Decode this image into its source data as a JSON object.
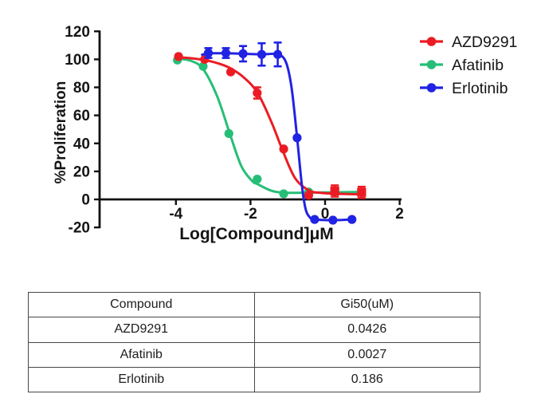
{
  "chart_data": {
    "type": "scatter-line",
    "title": "",
    "xlabel": "Log[Compound]μM",
    "ylabel": "%Proliferation",
    "xticks": [
      -4,
      -2,
      0,
      2
    ],
    "yticks": [
      120,
      100,
      80,
      60,
      40,
      20,
      0,
      -20
    ],
    "xlim": [
      -6.05,
      2.05
    ],
    "ylim": [
      -20,
      120
    ],
    "grid": false,
    "legend_position": "top-right",
    "axis_color": "#111111",
    "series": [
      {
        "name": "AZD9291",
        "color": "#EC1B23",
        "marker": "circle",
        "points": [
          {
            "x": -3.93,
            "y": 102
          },
          {
            "x": -3.23,
            "y": 100
          },
          {
            "x": -2.53,
            "y": 91
          },
          {
            "x": -1.82,
            "y": 76,
            "err": 4
          },
          {
            "x": -1.11,
            "y": 36
          },
          {
            "x": -0.44,
            "y": 3
          },
          {
            "x": 0.26,
            "y": 6,
            "err": 4,
            "shape": "square"
          },
          {
            "x": 0.98,
            "y": 5,
            "err": 4,
            "shape": "square"
          }
        ],
        "curve": [
          [
            -3.98,
            101.5
          ],
          [
            -3.6,
            100.8
          ],
          [
            -3.23,
            99.5
          ],
          [
            -2.85,
            97
          ],
          [
            -2.53,
            93.5
          ],
          [
            -2.2,
            87.5
          ],
          [
            -1.82,
            76.5
          ],
          [
            -1.45,
            56
          ],
          [
            -1.11,
            33
          ],
          [
            -0.8,
            15
          ],
          [
            -0.44,
            6.5
          ],
          [
            -0.1,
            4.6
          ],
          [
            0.4,
            4
          ],
          [
            1.05,
            3.6
          ]
        ]
      },
      {
        "name": "Afatinib",
        "color": "#26BE77",
        "marker": "circle",
        "points": [
          {
            "x": -3.96,
            "y": 99.5
          },
          {
            "x": -3.27,
            "y": 95
          },
          {
            "x": -2.58,
            "y": 47
          },
          {
            "x": -1.82,
            "y": 14.5
          },
          {
            "x": -1.11,
            "y": 4
          },
          {
            "x": -0.44,
            "y": 5.3
          }
        ],
        "curve": [
          [
            -4.0,
            100.5
          ],
          [
            -3.6,
            99
          ],
          [
            -3.27,
            93
          ],
          [
            -2.9,
            74
          ],
          [
            -2.58,
            49
          ],
          [
            -2.25,
            24
          ],
          [
            -1.95,
            13
          ],
          [
            -1.82,
            11
          ],
          [
            -1.45,
            6.3
          ],
          [
            -1.11,
            4.8
          ],
          [
            -0.6,
            4.8
          ],
          [
            0,
            5
          ],
          [
            0.6,
            5.2
          ],
          [
            1.02,
            5.4
          ]
        ]
      },
      {
        "name": "Erlotinib",
        "color": "#2023E3",
        "marker": "circle",
        "points": [
          {
            "x": -3.13,
            "y": 104.5,
            "err": 3.5
          },
          {
            "x": -2.66,
            "y": 104.5,
            "err": 3.5
          },
          {
            "x": -2.2,
            "y": 104,
            "err": 5.5
          },
          {
            "x": -1.7,
            "y": 103.5,
            "err": 8
          },
          {
            "x": -1.27,
            "y": 103.5,
            "err": 8.5
          },
          {
            "x": -0.75,
            "y": 44
          },
          {
            "x": -0.28,
            "y": -14.3
          },
          {
            "x": 0.21,
            "y": -14.8
          },
          {
            "x": 0.72,
            "y": -14.3
          }
        ],
        "curve": [
          [
            -3.3,
            103.3
          ],
          [
            -3.13,
            104.3
          ],
          [
            -2.66,
            104.3
          ],
          [
            -2.2,
            104
          ],
          [
            -1.7,
            103.6
          ],
          [
            -1.27,
            103.6
          ],
          [
            -1.05,
            98
          ],
          [
            -0.9,
            80
          ],
          [
            -0.75,
            44
          ],
          [
            -0.63,
            12
          ],
          [
            -0.53,
            -6
          ],
          [
            -0.42,
            -12.5
          ],
          [
            -0.28,
            -14.3
          ],
          [
            0.21,
            -14.8
          ],
          [
            0.72,
            -14.3
          ]
        ]
      }
    ]
  },
  "table": {
    "headers": [
      "Compound",
      "Gi50(uM)"
    ],
    "rows": [
      [
        "AZD9291",
        "0.0426"
      ],
      [
        "Afatinib",
        "0.0027"
      ],
      [
        "Erlotinib",
        "0.186"
      ]
    ]
  }
}
